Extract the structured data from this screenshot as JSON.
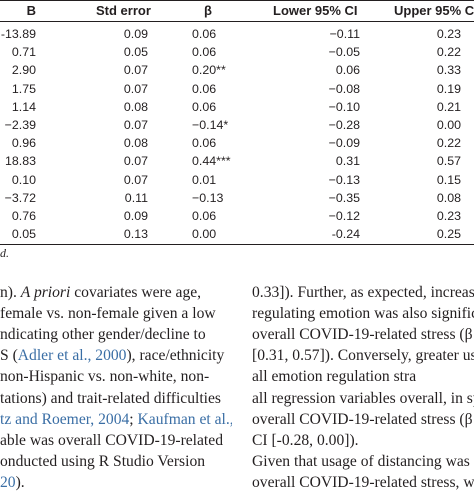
{
  "table": {
    "headers": {
      "b": "B",
      "std_error": "Std error",
      "beta": "β",
      "lower_ci": "Lower 95% CI",
      "upper_ci": "Upper 95% C"
    },
    "rows": [
      {
        "b": "-13.89",
        "std_error": "0.09",
        "beta": "0.06",
        "lower_ci": "−0.11",
        "upper_ci": "0.23"
      },
      {
        "b": "0.71",
        "std_error": "0.05",
        "beta": "0.06",
        "lower_ci": "−0.05",
        "upper_ci": "0.22"
      },
      {
        "b": "2.90",
        "std_error": "0.07",
        "beta": "0.20**",
        "lower_ci": "0.06",
        "upper_ci": "0.33"
      },
      {
        "b": "1.75",
        "std_error": "0.07",
        "beta": "0.06",
        "lower_ci": "−0.08",
        "upper_ci": "0.19"
      },
      {
        "b": "1.14",
        "std_error": "0.08",
        "beta": "0.06",
        "lower_ci": "−0.10",
        "upper_ci": "0.21"
      },
      {
        "b": "−2.39",
        "std_error": "0.07",
        "beta": "−0.14*",
        "lower_ci": "−0.28",
        "upper_ci": "0.00"
      },
      {
        "b": "0.96",
        "std_error": "0.08",
        "beta": "0.06",
        "lower_ci": "−0.09",
        "upper_ci": "0.22"
      },
      {
        "b": "18.83",
        "std_error": "0.07",
        "beta": "0.44***",
        "lower_ci": "0.31",
        "upper_ci": "0.57"
      },
      {
        "b": "0.10",
        "std_error": "0.07",
        "beta": "0.01",
        "lower_ci": "−0.13",
        "upper_ci": "0.15"
      },
      {
        "b": "−3.72",
        "std_error": "0.11",
        "beta": "−0.13",
        "lower_ci": "−0.35",
        "upper_ci": "0.08"
      },
      {
        "b": "0.76",
        "std_error": "0.09",
        "beta": "0.06",
        "lower_ci": "−0.12",
        "upper_ci": "0.23"
      },
      {
        "b": "0.05",
        "std_error": "0.13",
        "beta": "0.00",
        "lower_ci": "-0.24",
        "upper_ci": "0.25"
      }
    ],
    "footnote": "d."
  },
  "left_column": [
    {
      "parts": [
        {
          "t": "n). "
        },
        {
          "t": "A priori",
          "i": true
        },
        {
          "t": " covariates were age,"
        }
      ]
    },
    {
      "parts": [
        {
          "t": "female vs. non-female given a low"
        }
      ]
    },
    {
      "parts": [
        {
          "t": "ndicating other gender/decline to"
        }
      ]
    },
    {
      "parts": [
        {
          "t": "S ("
        },
        {
          "t": "Adler et al., 2000",
          "c": true
        },
        {
          "t": "), race/ethnicity"
        }
      ]
    },
    {
      "parts": [
        {
          "t": "non-Hispanic vs. non-white, non-"
        }
      ]
    },
    {
      "parts": [
        {
          "t": "tations) and trait-related difficulties"
        }
      ]
    },
    {
      "parts": [
        {
          "t": "tz and Roemer, 2004",
          "c": true
        },
        {
          "t": "; "
        },
        {
          "t": "Kaufman et al.,",
          "c": true
        }
      ]
    },
    {
      "parts": [
        {
          "t": "able was overall COVID-19-related"
        }
      ]
    },
    {
      "parts": [
        {
          "t": "onducted using R Studio Version"
        }
      ]
    },
    {
      "parts": [
        {
          "t": "20",
          "c": true
        },
        {
          "t": ")."
        }
      ]
    }
  ],
  "right_column": [
    {
      "parts": [
        {
          "t": "0.33]). Further, as expected, increase"
        }
      ]
    },
    {
      "parts": [
        {
          "t": "regulating emotion was also significa"
        }
      ]
    },
    {
      "parts": [
        {
          "t": "overall COVID-19-related stress (β"
        }
      ]
    },
    {
      "parts": [
        {
          "t": "[0.31, 0.57]). Conversely, greater use"
        }
      ]
    },
    {
      "parts": [
        {
          "t": "all emotion regulation stra"
        }
      ]
    },
    {
      "parts": [
        {
          "t": "all regression variables overall, in spe"
        }
      ]
    },
    {
      "parts": [
        {
          "t": "overall COVID-19-related stress (β"
        }
      ]
    },
    {
      "parts": [
        {
          "t": "CI [-0.28, 0.00])."
        }
      ]
    },
    {
      "parts": [
        {
          "t": "Given that usage of distancing was"
        }
      ]
    },
    {
      "parts": [
        {
          "t": "overall COVID-19-related stress, we"
        }
      ]
    }
  ]
}
